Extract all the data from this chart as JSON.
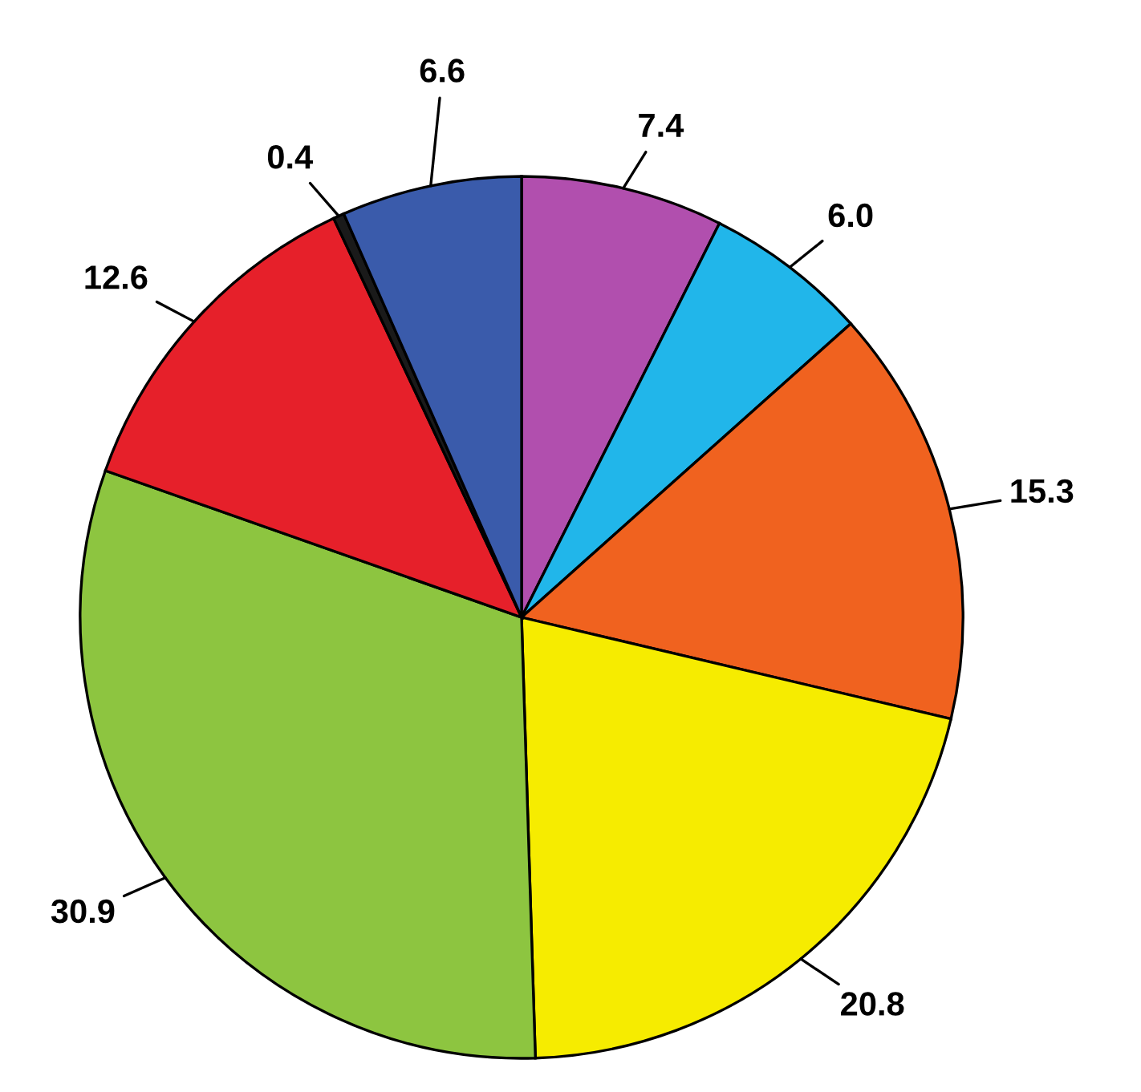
{
  "chart_data": {
    "type": "pie",
    "categories": [
      null,
      null,
      null,
      null,
      null,
      null,
      null,
      null
    ],
    "values": [
      7.4,
      6.0,
      15.3,
      20.8,
      30.9,
      12.6,
      0.4,
      6.6
    ],
    "colors": [
      "#b14fae",
      "#21b6ea",
      "#f0621f",
      "#f6ec00",
      "#8dc540",
      "#e6202a",
      "#1a1a1a",
      "#3a5bab"
    ],
    "value_labels": [
      "7.4",
      "6.0",
      "15.3",
      "20.8",
      "30.9",
      "12.6",
      "0.4",
      "6.6"
    ]
  }
}
